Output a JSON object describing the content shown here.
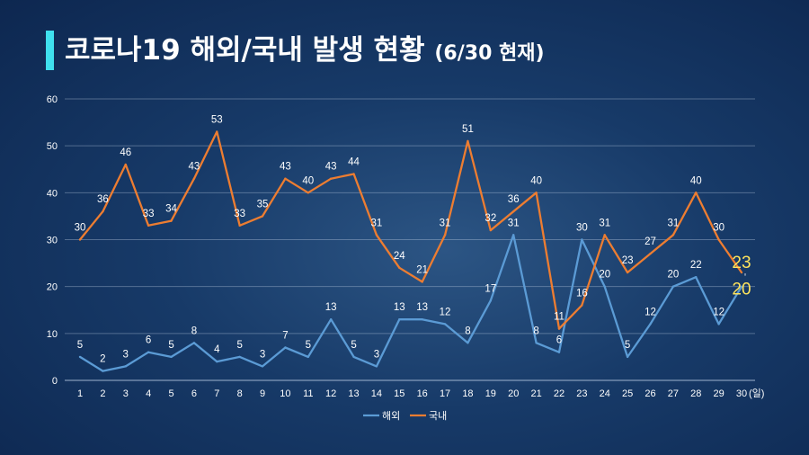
{
  "title": {
    "main": "코로나19 해외/국내 발생 현황",
    "sub": "(6/30 현재)"
  },
  "colors": {
    "title_accent": "#3fe0ee",
    "overseas": "#5b9bd5",
    "domestic": "#ed7d31",
    "highlight_label": "#ffe45c"
  },
  "chart_data": {
    "type": "line",
    "x": [
      1,
      2,
      3,
      4,
      5,
      6,
      7,
      8,
      9,
      10,
      11,
      12,
      13,
      14,
      15,
      16,
      17,
      18,
      19,
      20,
      21,
      22,
      23,
      24,
      25,
      26,
      27,
      28,
      29,
      30
    ],
    "x_tick_labels": [
      "1",
      "2",
      "3",
      "4",
      "5",
      "6",
      "7",
      "8",
      "9",
      "10",
      "11",
      "12",
      "13",
      "14",
      "15",
      "16",
      "17",
      "18",
      "19",
      "20",
      "21",
      "22",
      "23",
      "24",
      "25",
      "26",
      "27",
      "28",
      "29",
      "30"
    ],
    "x_unit_label": "(일)",
    "ylim": [
      0,
      60
    ],
    "y_ticks": [
      0,
      10,
      20,
      30,
      40,
      50,
      60
    ],
    "grid": "horizontal",
    "legend_position": "bottom-center",
    "series": [
      {
        "name": "해외",
        "values": [
          5,
          2,
          3,
          6,
          5,
          8,
          4,
          5,
          3,
          7,
          5,
          13,
          5,
          3,
          13,
          13,
          12,
          8,
          17,
          31,
          8,
          6,
          30,
          20,
          5,
          12,
          20,
          22,
          12,
          20
        ]
      },
      {
        "name": "국내",
        "values": [
          30,
          36,
          46,
          33,
          34,
          43,
          53,
          33,
          35,
          43,
          40,
          43,
          44,
          31,
          24,
          21,
          31,
          51,
          32,
          36,
          40,
          11,
          16,
          31,
          23,
          27,
          31,
          40,
          30,
          23
        ]
      }
    ]
  }
}
